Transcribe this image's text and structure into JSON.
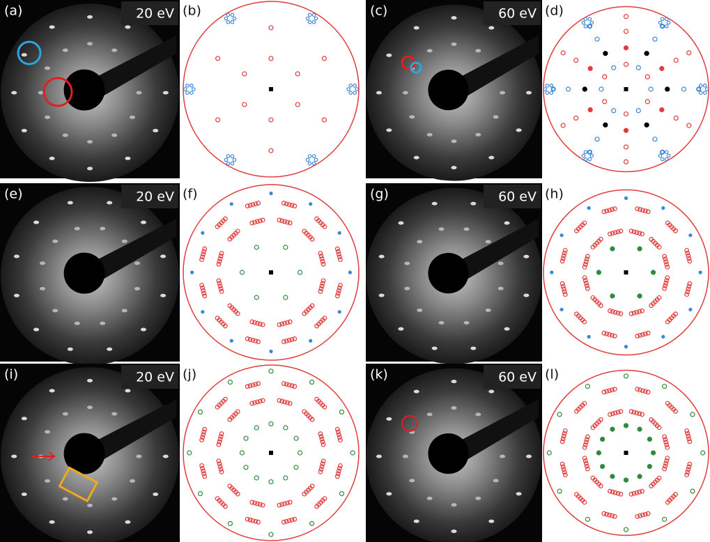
{
  "panels": [
    {
      "label": "(a)",
      "energy": "20 eV"
    },
    {
      "label": "(b)"
    },
    {
      "label": "(c)",
      "energy": "60 eV"
    },
    {
      "label": "(d)"
    },
    {
      "label": "(e)",
      "energy": "20 eV"
    },
    {
      "label": "(f)"
    },
    {
      "label": "(g)",
      "energy": "60 eV"
    },
    {
      "label": "(h)"
    },
    {
      "label": "(i)",
      "energy": "20 eV"
    },
    {
      "label": "(j)"
    },
    {
      "label": "(k)",
      "energy": "60 eV"
    },
    {
      "label": "(l)"
    }
  ]
}
